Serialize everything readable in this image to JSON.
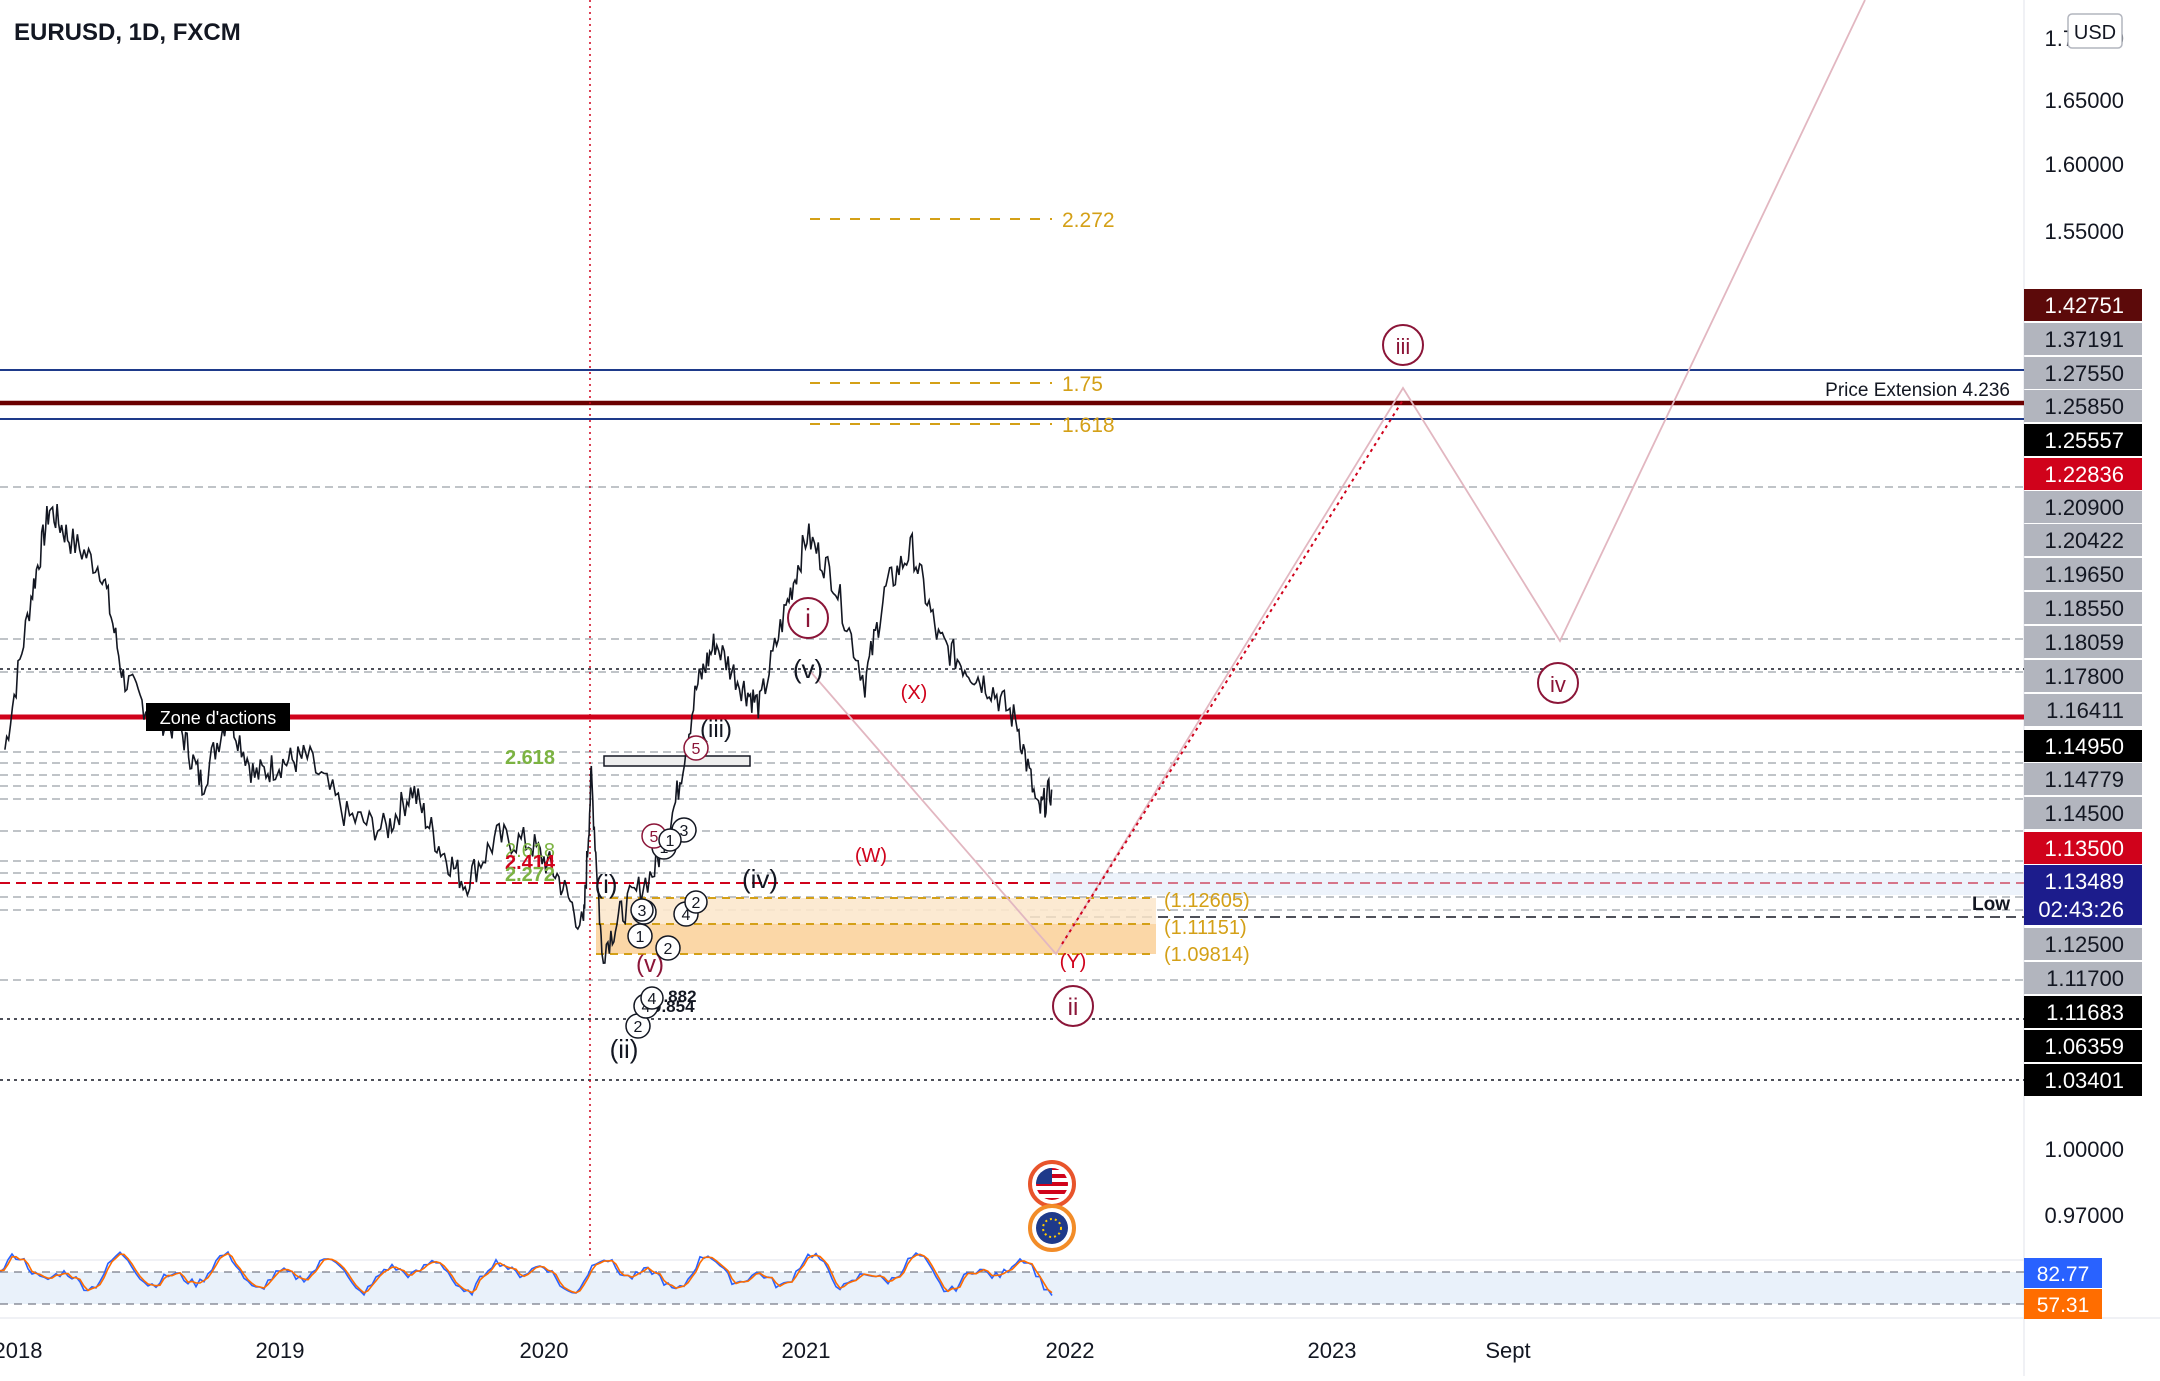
{
  "header": {
    "symbol_title": "EURUSD, 1D, FXCM",
    "currency_button": "USD"
  },
  "colors": {
    "background": "#ffffff",
    "price_line": "#131722",
    "zone_red": "#d0021b",
    "resistance_darkred": "#6b0000",
    "channel_blue": "#1e3a8a",
    "wave_maroon": "#8b1538",
    "fib_gold": "#d4a017",
    "fib_green": "#7cb342",
    "current_price_bg": "#1c1c8c",
    "stoch_blue": "#2962ff",
    "stoch_orange": "#ff6d00"
  },
  "chart_data": {
    "type": "line",
    "symbol": "EURUSD",
    "timeframe": "1D",
    "source": "FXCM",
    "x_axis": {
      "ticks": [
        "2018",
        "2019",
        "2020",
        "2021",
        "2022",
        "2023",
        "Sept"
      ]
    },
    "y_axis": {
      "currency": "USD",
      "ticks": [
        "1.70000",
        "1.65000",
        "1.60000",
        "1.55000",
        "1.00000",
        "0.97000"
      ]
    },
    "price_series_anchors": [
      {
        "t": 2017.95,
        "p": 1.148
      },
      {
        "t": 2018.05,
        "p": 1.205
      },
      {
        "t": 2018.12,
        "p": 1.238
      },
      {
        "t": 2018.2,
        "p": 1.226
      },
      {
        "t": 2018.32,
        "p": 1.215
      },
      {
        "t": 2018.4,
        "p": 1.175
      },
      {
        "t": 2018.5,
        "p": 1.162
      },
      {
        "t": 2018.62,
        "p": 1.155
      },
      {
        "t": 2018.7,
        "p": 1.135
      },
      {
        "t": 2018.8,
        "p": 1.162
      },
      {
        "t": 2018.9,
        "p": 1.138
      },
      {
        "t": 2019.0,
        "p": 1.143
      },
      {
        "t": 2019.1,
        "p": 1.145
      },
      {
        "t": 2019.25,
        "p": 1.123
      },
      {
        "t": 2019.4,
        "p": 1.118
      },
      {
        "t": 2019.5,
        "p": 1.133
      },
      {
        "t": 2019.6,
        "p": 1.112
      },
      {
        "t": 2019.7,
        "p": 1.098
      },
      {
        "t": 2019.82,
        "p": 1.115
      },
      {
        "t": 2019.95,
        "p": 1.113
      },
      {
        "t": 2020.05,
        "p": 1.101
      },
      {
        "t": 2020.15,
        "p": 1.081
      },
      {
        "t": 2020.18,
        "p": 1.138
      },
      {
        "t": 2020.22,
        "p": 1.072
      },
      {
        "t": 2020.3,
        "p": 1.088
      },
      {
        "t": 2020.42,
        "p": 1.103
      },
      {
        "t": 2020.5,
        "p": 1.128
      },
      {
        "t": 2020.58,
        "p": 1.171
      },
      {
        "t": 2020.65,
        "p": 1.188
      },
      {
        "t": 2020.75,
        "p": 1.172
      },
      {
        "t": 2020.82,
        "p": 1.164
      },
      {
        "t": 2020.92,
        "p": 1.201
      },
      {
        "t": 2021.0,
        "p": 1.228
      },
      {
        "t": 2021.1,
        "p": 1.212
      },
      {
        "t": 2021.22,
        "p": 1.173
      },
      {
        "t": 2021.3,
        "p": 1.208
      },
      {
        "t": 2021.4,
        "p": 1.223
      },
      {
        "t": 2021.5,
        "p": 1.189
      },
      {
        "t": 2021.6,
        "p": 1.179
      },
      {
        "t": 2021.7,
        "p": 1.171
      },
      {
        "t": 2021.8,
        "p": 1.158
      },
      {
        "t": 2021.88,
        "p": 1.124
      },
      {
        "t": 2021.93,
        "p": 1.133
      }
    ],
    "horizontal_levels": [
      "1.75",
      "1.618",
      "2.272"
    ],
    "zones": [
      {
        "name": "Zone d'actions",
        "price": 1.164
      },
      {
        "name": "Price Extension 4.236",
        "price": 1.2585
      },
      {
        "name": "Low",
        "price": 1.122
      }
    ],
    "fib_labels_gold": [
      "2.272",
      "1.75",
      "1.618"
    ],
    "fib_labels_left": [
      "2.618",
      "2.618",
      "2.414",
      "2.272"
    ],
    "target_box_labels": [
      "(1.12605)",
      "(1.11151)",
      "(1.09814)"
    ],
    "small_labels": [
      "0.882",
      "0.854"
    ],
    "wave_labels": {
      "maroon_circled": [
        "i",
        "ii",
        "iii",
        "iv"
      ],
      "red": [
        "(X)",
        "(W)",
        "(Y)"
      ],
      "black": [
        "(v)",
        "(iv)",
        "(iii)",
        "(i)",
        "(ii)",
        "(v)"
      ],
      "small_numbers": [
        "1",
        "2",
        "3",
        "4",
        "5",
        "1",
        "2",
        "3",
        "4",
        "5",
        "1",
        "2",
        "3",
        "4"
      ]
    },
    "price_scale_labels": [
      {
        "value": "1.42751",
        "bg": "#5c0a0a",
        "fg": "#ffffff"
      },
      {
        "value": "1.37191",
        "bg": "#b2b5be",
        "fg": "#131722"
      },
      {
        "value": "1.27550",
        "bg": "#b2b5be",
        "fg": "#131722"
      },
      {
        "value": "1.25850",
        "bg": "#b2b5be",
        "fg": "#131722"
      },
      {
        "value": "1.25557",
        "bg": "#000000",
        "fg": "#ffffff"
      },
      {
        "value": "1.22836",
        "bg": "#d0021b",
        "fg": "#ffffff"
      },
      {
        "value": "1.20900",
        "bg": "#b2b5be",
        "fg": "#131722"
      },
      {
        "value": "1.20422",
        "bg": "#b2b5be",
        "fg": "#131722"
      },
      {
        "value": "1.19650",
        "bg": "#b2b5be",
        "fg": "#131722"
      },
      {
        "value": "1.18550",
        "bg": "#b2b5be",
        "fg": "#131722"
      },
      {
        "value": "1.18059",
        "bg": "#b2b5be",
        "fg": "#131722"
      },
      {
        "value": "1.17800",
        "bg": "#b2b5be",
        "fg": "#131722"
      },
      {
        "value": "1.16411",
        "bg": "#b2b5be",
        "fg": "#131722"
      },
      {
        "value": "1.14950",
        "bg": "#000000",
        "fg": "#ffffff"
      },
      {
        "value": "1.14779",
        "bg": "#b2b5be",
        "fg": "#131722"
      },
      {
        "value": "1.14500",
        "bg": "#b2b5be",
        "fg": "#131722"
      },
      {
        "value": "1.13500",
        "bg": "#d0021b",
        "fg": "#ffffff"
      },
      {
        "value": "1.13489",
        "bg": "#1c1c8c",
        "fg": "#ffffff"
      },
      {
        "value": "02:43:26",
        "bg": "#1c1c8c",
        "fg": "#ffffff"
      },
      {
        "value": "1.12500",
        "bg": "#b2b5be",
        "fg": "#131722"
      },
      {
        "value": "1.11700",
        "bg": "#b2b5be",
        "fg": "#131722"
      },
      {
        "value": "1.11683",
        "bg": "#000000",
        "fg": "#ffffff"
      },
      {
        "value": "1.06359",
        "bg": "#000000",
        "fg": "#ffffff"
      },
      {
        "value": "1.03401",
        "bg": "#000000",
        "fg": "#ffffff"
      }
    ],
    "current_price": "1.13489",
    "countdown": "02:43:26",
    "oscillator": {
      "type": "stochastic",
      "values": [
        "82.77",
        "57.31"
      ],
      "value_colors": [
        "#2962ff",
        "#ff6d00"
      ]
    },
    "event_icons": [
      "us-flag-icon",
      "eu-flag-icon"
    ],
    "grid": false
  }
}
